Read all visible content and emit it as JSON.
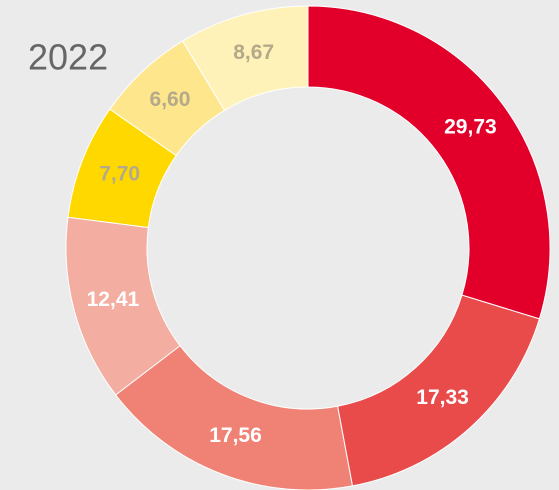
{
  "chart_data": {
    "type": "donut",
    "title": "2022",
    "values": [
      29.73,
      17.33,
      17.56,
      12.41,
      7.7,
      6.6,
      8.67
    ],
    "value_labels": [
      "29,73",
      "17,33",
      "17,56",
      "12,41",
      "7,70",
      "6,60",
      "8,67"
    ],
    "colors": [
      "#e2002b",
      "#e94b4b",
      "#ef8274",
      "#f4ada1",
      "#ffd800",
      "#fde68c",
      "#fff2b8"
    ],
    "label_colors": [
      "#ffffff",
      "#ffffff",
      "#ffffff",
      "#ffffff",
      "#b4a98a",
      "#b4a98a",
      "#b4a98a"
    ]
  }
}
